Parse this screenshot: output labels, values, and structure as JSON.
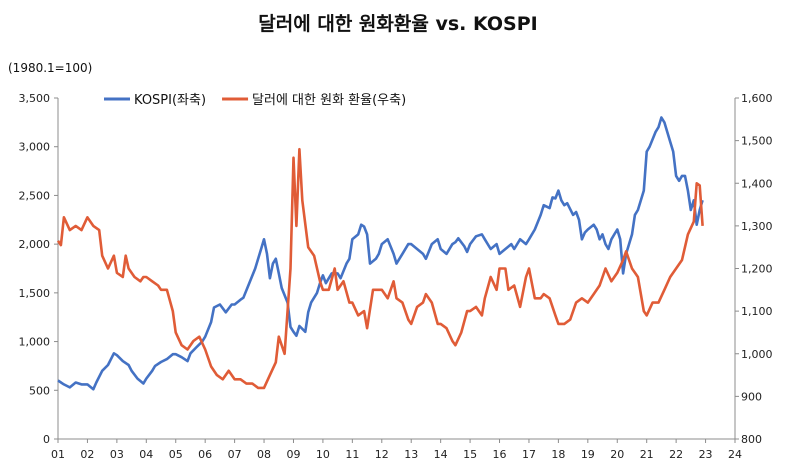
{
  "chart_data": {
    "type": "line",
    "title": "달러에 대한 원화환율 vs. KOSPI",
    "unit_note": "(1980.1=100)",
    "x_tick_labels": [
      "01",
      "02",
      "03",
      "04",
      "05",
      "06",
      "07",
      "08",
      "09",
      "10",
      "11",
      "12",
      "13",
      "14",
      "15",
      "16",
      "17",
      "18",
      "19",
      "20",
      "21",
      "22",
      "23",
      "24"
    ],
    "x_range": [
      2001,
      2024
    ],
    "y_left": {
      "ticks": [
        0,
        500,
        1000,
        1500,
        2000,
        2500,
        3000,
        3500
      ],
      "labels": [
        "0",
        "500",
        "1,000",
        "1,500",
        "2,000",
        "2,500",
        "3,000",
        "3,500"
      ],
      "range": [
        0,
        3500
      ]
    },
    "y_right": {
      "ticks": [
        800,
        900,
        1000,
        1100,
        1200,
        1300,
        1400,
        1500,
        1600
      ],
      "labels": [
        "800",
        "900",
        "1,000",
        "1,100",
        "1,200",
        "1,300",
        "1,400",
        "1,500",
        "1,600"
      ],
      "range": [
        800,
        1600
      ]
    },
    "legend_position": "top-left",
    "grid": false,
    "series": [
      {
        "name": "KOSPI(좌축)",
        "axis": "left",
        "color": "#4472C4",
        "points": [
          [
            2001.0,
            600
          ],
          [
            2001.2,
            560
          ],
          [
            2001.4,
            530
          ],
          [
            2001.6,
            580
          ],
          [
            2001.8,
            560
          ],
          [
            2002.0,
            560
          ],
          [
            2002.2,
            510
          ],
          [
            2002.3,
            580
          ],
          [
            2002.5,
            700
          ],
          [
            2002.7,
            760
          ],
          [
            2002.9,
            880
          ],
          [
            2003.0,
            860
          ],
          [
            2003.2,
            800
          ],
          [
            2003.4,
            760
          ],
          [
            2003.5,
            700
          ],
          [
            2003.7,
            620
          ],
          [
            2003.9,
            570
          ],
          [
            2004.0,
            620
          ],
          [
            2004.2,
            700
          ],
          [
            2004.3,
            750
          ],
          [
            2004.5,
            790
          ],
          [
            2004.7,
            820
          ],
          [
            2004.9,
            870
          ],
          [
            2005.0,
            870
          ],
          [
            2005.2,
            840
          ],
          [
            2005.4,
            800
          ],
          [
            2005.5,
            880
          ],
          [
            2005.7,
            940
          ],
          [
            2005.9,
            1000
          ],
          [
            2006.0,
            1050
          ],
          [
            2006.2,
            1200
          ],
          [
            2006.3,
            1350
          ],
          [
            2006.5,
            1380
          ],
          [
            2006.7,
            1300
          ],
          [
            2006.9,
            1380
          ],
          [
            2007.0,
            1380
          ],
          [
            2007.2,
            1430
          ],
          [
            2007.3,
            1450
          ],
          [
            2007.5,
            1600
          ],
          [
            2007.7,
            1750
          ],
          [
            2007.9,
            1950
          ],
          [
            2008.0,
            2050
          ],
          [
            2008.1,
            1900
          ],
          [
            2008.2,
            1650
          ],
          [
            2008.3,
            1800
          ],
          [
            2008.4,
            1850
          ],
          [
            2008.5,
            1700
          ],
          [
            2008.6,
            1550
          ],
          [
            2008.8,
            1400
          ],
          [
            2008.9,
            1150
          ],
          [
            2009.0,
            1100
          ],
          [
            2009.1,
            1060
          ],
          [
            2009.2,
            1160
          ],
          [
            2009.4,
            1100
          ],
          [
            2009.5,
            1300
          ],
          [
            2009.6,
            1400
          ],
          [
            2009.8,
            1500
          ],
          [
            2009.9,
            1600
          ],
          [
            2010.0,
            1680
          ],
          [
            2010.1,
            1600
          ],
          [
            2010.3,
            1700
          ],
          [
            2010.5,
            1700
          ],
          [
            2010.6,
            1650
          ],
          [
            2010.8,
            1800
          ],
          [
            2010.9,
            1850
          ],
          [
            2011.0,
            2050
          ],
          [
            2011.2,
            2100
          ],
          [
            2011.3,
            2200
          ],
          [
            2011.4,
            2180
          ],
          [
            2011.5,
            2100
          ],
          [
            2011.6,
            1800
          ],
          [
            2011.8,
            1850
          ],
          [
            2011.9,
            1900
          ],
          [
            2012.0,
            2000
          ],
          [
            2012.2,
            2050
          ],
          [
            2012.4,
            1900
          ],
          [
            2012.5,
            1800
          ],
          [
            2012.7,
            1900
          ],
          [
            2012.9,
            2000
          ],
          [
            2013.0,
            2000
          ],
          [
            2013.2,
            1950
          ],
          [
            2013.4,
            1900
          ],
          [
            2013.5,
            1850
          ],
          [
            2013.7,
            2000
          ],
          [
            2013.9,
            2050
          ],
          [
            2014.0,
            1950
          ],
          [
            2014.2,
            1900
          ],
          [
            2014.4,
            2000
          ],
          [
            2014.5,
            2020
          ],
          [
            2014.6,
            2060
          ],
          [
            2014.8,
            1980
          ],
          [
            2014.9,
            1920
          ],
          [
            2015.0,
            2000
          ],
          [
            2015.2,
            2080
          ],
          [
            2015.4,
            2100
          ],
          [
            2015.5,
            2050
          ],
          [
            2015.7,
            1950
          ],
          [
            2015.9,
            2000
          ],
          [
            2016.0,
            1900
          ],
          [
            2016.2,
            1950
          ],
          [
            2016.4,
            2000
          ],
          [
            2016.5,
            1950
          ],
          [
            2016.7,
            2050
          ],
          [
            2016.9,
            2000
          ],
          [
            2017.0,
            2050
          ],
          [
            2017.2,
            2150
          ],
          [
            2017.4,
            2300
          ],
          [
            2017.5,
            2400
          ],
          [
            2017.7,
            2370
          ],
          [
            2017.8,
            2480
          ],
          [
            2017.9,
            2470
          ],
          [
            2018.0,
            2550
          ],
          [
            2018.1,
            2450
          ],
          [
            2018.2,
            2400
          ],
          [
            2018.3,
            2420
          ],
          [
            2018.5,
            2300
          ],
          [
            2018.6,
            2330
          ],
          [
            2018.7,
            2250
          ],
          [
            2018.8,
            2050
          ],
          [
            2018.9,
            2120
          ],
          [
            2019.0,
            2150
          ],
          [
            2019.2,
            2200
          ],
          [
            2019.3,
            2150
          ],
          [
            2019.4,
            2050
          ],
          [
            2019.5,
            2100
          ],
          [
            2019.6,
            2000
          ],
          [
            2019.7,
            1950
          ],
          [
            2019.8,
            2050
          ],
          [
            2019.9,
            2100
          ],
          [
            2020.0,
            2150
          ],
          [
            2020.1,
            2050
          ],
          [
            2020.2,
            1700
          ],
          [
            2020.3,
            1900
          ],
          [
            2020.5,
            2100
          ],
          [
            2020.6,
            2300
          ],
          [
            2020.7,
            2350
          ],
          [
            2020.9,
            2550
          ],
          [
            2021.0,
            2950
          ],
          [
            2021.1,
            3000
          ],
          [
            2021.3,
            3150
          ],
          [
            2021.4,
            3200
          ],
          [
            2021.5,
            3300
          ],
          [
            2021.6,
            3250
          ],
          [
            2021.8,
            3050
          ],
          [
            2021.9,
            2950
          ],
          [
            2022.0,
            2700
          ],
          [
            2022.1,
            2650
          ],
          [
            2022.2,
            2700
          ],
          [
            2022.3,
            2700
          ],
          [
            2022.4,
            2550
          ],
          [
            2022.5,
            2350
          ],
          [
            2022.6,
            2450
          ],
          [
            2022.7,
            2200
          ],
          [
            2022.8,
            2350
          ],
          [
            2022.9,
            2450
          ]
        ]
      },
      {
        "name": "달러에 대한 원화 환율(우축)",
        "axis": "right",
        "color": "#E05C37",
        "points": [
          [
            2001.0,
            1265
          ],
          [
            2001.1,
            1255
          ],
          [
            2001.2,
            1320
          ],
          [
            2001.4,
            1290
          ],
          [
            2001.6,
            1300
          ],
          [
            2001.8,
            1290
          ],
          [
            2002.0,
            1320
          ],
          [
            2002.2,
            1300
          ],
          [
            2002.4,
            1290
          ],
          [
            2002.5,
            1230
          ],
          [
            2002.7,
            1200
          ],
          [
            2002.9,
            1230
          ],
          [
            2003.0,
            1190
          ],
          [
            2003.2,
            1180
          ],
          [
            2003.3,
            1230
          ],
          [
            2003.4,
            1200
          ],
          [
            2003.6,
            1180
          ],
          [
            2003.8,
            1170
          ],
          [
            2003.9,
            1180
          ],
          [
            2004.0,
            1180
          ],
          [
            2004.2,
            1170
          ],
          [
            2004.4,
            1160
          ],
          [
            2004.5,
            1150
          ],
          [
            2004.7,
            1150
          ],
          [
            2004.9,
            1100
          ],
          [
            2005.0,
            1050
          ],
          [
            2005.2,
            1020
          ],
          [
            2005.4,
            1010
          ],
          [
            2005.6,
            1030
          ],
          [
            2005.8,
            1040
          ],
          [
            2006.0,
            1010
          ],
          [
            2006.2,
            970
          ],
          [
            2006.4,
            950
          ],
          [
            2006.6,
            940
          ],
          [
            2006.8,
            960
          ],
          [
            2007.0,
            940
          ],
          [
            2007.2,
            940
          ],
          [
            2007.4,
            930
          ],
          [
            2007.6,
            930
          ],
          [
            2007.8,
            920
          ],
          [
            2008.0,
            920
          ],
          [
            2008.2,
            950
          ],
          [
            2008.4,
            980
          ],
          [
            2008.5,
            1040
          ],
          [
            2008.7,
            1000
          ],
          [
            2008.9,
            1200
          ],
          [
            2009.0,
            1460
          ],
          [
            2009.1,
            1300
          ],
          [
            2009.2,
            1480
          ],
          [
            2009.3,
            1360
          ],
          [
            2009.5,
            1250
          ],
          [
            2009.7,
            1230
          ],
          [
            2009.9,
            1170
          ],
          [
            2010.0,
            1150
          ],
          [
            2010.2,
            1150
          ],
          [
            2010.4,
            1200
          ],
          [
            2010.5,
            1150
          ],
          [
            2010.7,
            1170
          ],
          [
            2010.9,
            1120
          ],
          [
            2011.0,
            1120
          ],
          [
            2011.2,
            1090
          ],
          [
            2011.4,
            1100
          ],
          [
            2011.5,
            1060
          ],
          [
            2011.7,
            1150
          ],
          [
            2011.9,
            1150
          ],
          [
            2012.0,
            1150
          ],
          [
            2012.2,
            1130
          ],
          [
            2012.4,
            1170
          ],
          [
            2012.5,
            1130
          ],
          [
            2012.7,
            1120
          ],
          [
            2012.9,
            1080
          ],
          [
            2013.0,
            1070
          ],
          [
            2013.2,
            1110
          ],
          [
            2013.4,
            1120
          ],
          [
            2013.5,
            1140
          ],
          [
            2013.7,
            1120
          ],
          [
            2013.9,
            1070
          ],
          [
            2014.0,
            1070
          ],
          [
            2014.2,
            1060
          ],
          [
            2014.4,
            1030
          ],
          [
            2014.5,
            1020
          ],
          [
            2014.7,
            1050
          ],
          [
            2014.9,
            1100
          ],
          [
            2015.0,
            1100
          ],
          [
            2015.2,
            1110
          ],
          [
            2015.4,
            1090
          ],
          [
            2015.5,
            1130
          ],
          [
            2015.7,
            1180
          ],
          [
            2015.9,
            1150
          ],
          [
            2016.0,
            1200
          ],
          [
            2016.2,
            1200
          ],
          [
            2016.3,
            1150
          ],
          [
            2016.5,
            1160
          ],
          [
            2016.7,
            1110
          ],
          [
            2016.9,
            1180
          ],
          [
            2017.0,
            1200
          ],
          [
            2017.2,
            1130
          ],
          [
            2017.4,
            1130
          ],
          [
            2017.5,
            1140
          ],
          [
            2017.7,
            1130
          ],
          [
            2017.9,
            1090
          ],
          [
            2018.0,
            1070
          ],
          [
            2018.2,
            1070
          ],
          [
            2018.4,
            1080
          ],
          [
            2018.6,
            1120
          ],
          [
            2018.8,
            1130
          ],
          [
            2019.0,
            1120
          ],
          [
            2019.2,
            1140
          ],
          [
            2019.4,
            1160
          ],
          [
            2019.6,
            1200
          ],
          [
            2019.8,
            1170
          ],
          [
            2020.0,
            1190
          ],
          [
            2020.2,
            1220
          ],
          [
            2020.3,
            1240
          ],
          [
            2020.5,
            1200
          ],
          [
            2020.7,
            1180
          ],
          [
            2020.9,
            1100
          ],
          [
            2021.0,
            1090
          ],
          [
            2021.2,
            1120
          ],
          [
            2021.4,
            1120
          ],
          [
            2021.6,
            1150
          ],
          [
            2021.8,
            1180
          ],
          [
            2022.0,
            1200
          ],
          [
            2022.2,
            1220
          ],
          [
            2022.4,
            1280
          ],
          [
            2022.6,
            1310
          ],
          [
            2022.7,
            1400
          ],
          [
            2022.8,
            1395
          ],
          [
            2022.9,
            1300
          ]
        ]
      }
    ]
  }
}
